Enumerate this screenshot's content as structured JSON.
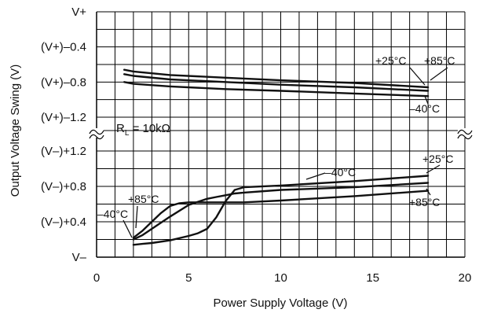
{
  "chart_data": {
    "type": "line",
    "xlabel": "Power Supply Voltage (V)",
    "ylabel": "Output Voltage Swing (V)",
    "xlim": [
      0,
      20
    ],
    "x_ticks": [
      "0",
      "5",
      "10",
      "15",
      "20"
    ],
    "y_ticks": [
      "V+",
      "(V+)–0.4",
      "(V+)–0.8",
      "(V+)–1.2",
      "(V–)+1.2",
      "(V–)+0.8",
      "(V–)+0.4",
      "V–"
    ],
    "annotation": {
      "main": "R",
      "sub": "L",
      "rest": " = 10kΩ"
    },
    "axis_break": true,
    "grid": true,
    "panels": [
      {
        "name": "high-side",
        "y_reference": "V+",
        "ylim": [
          -1.2,
          0.0
        ],
        "series": [
          {
            "label": "+25°C",
            "x": [
              1.5,
              2,
              4,
              7,
              10,
              14,
              18
            ],
            "y": [
              -0.66,
              -0.68,
              -0.72,
              -0.75,
              -0.78,
              -0.81,
              -0.86
            ]
          },
          {
            "label": "+85°C",
            "x": [
              1.5,
              2,
              4,
              7,
              10,
              14,
              18
            ],
            "y": [
              -0.71,
              -0.73,
              -0.77,
              -0.8,
              -0.83,
              -0.86,
              -0.9
            ]
          },
          {
            "label": "–40°C",
            "x": [
              1.5,
              2,
              4,
              7,
              10,
              14,
              18
            ],
            "y": [
              -0.8,
              -0.82,
              -0.85,
              -0.88,
              -0.9,
              -0.93,
              -0.96
            ]
          }
        ]
      },
      {
        "name": "low-side",
        "y_reference": "V–",
        "ylim": [
          0.0,
          1.2
        ],
        "series": [
          {
            "label": "–40°C",
            "x": [
              2,
              2.5,
              3,
              4,
              5,
              5.5,
              6,
              6.5,
              7,
              7.5,
              8,
              10,
              14,
              18
            ],
            "y": [
              0.14,
              0.15,
              0.16,
              0.19,
              0.24,
              0.27,
              0.32,
              0.45,
              0.63,
              0.76,
              0.79,
              0.81,
              0.86,
              0.92
            ]
          },
          {
            "label": "+25°C",
            "x": [
              2,
              2.5,
              3,
              4,
              5,
              6,
              6.5,
              7,
              7.5,
              8,
              10,
              14,
              18
            ],
            "y": [
              0.2,
              0.25,
              0.32,
              0.46,
              0.59,
              0.66,
              0.68,
              0.7,
              0.72,
              0.73,
              0.76,
              0.79,
              0.84
            ]
          },
          {
            "label": "+85°C",
            "x": [
              2,
              2.5,
              3,
              3.5,
              4,
              4.5,
              5,
              6,
              8,
              10,
              14,
              18
            ],
            "y": [
              0.22,
              0.3,
              0.4,
              0.5,
              0.58,
              0.61,
              0.62,
              0.62,
              0.62,
              0.64,
              0.69,
              0.75
            ]
          }
        ]
      }
    ],
    "labels": {
      "top_plus25": "+25°C",
      "top_plus85": "+85°C",
      "top_minus40": "–40°C",
      "bot_minus40_mid": "–40°C",
      "bot_plus25": "+25°C",
      "bot_plus85_right": "+85°C",
      "bot_plus85_left": "+85°C",
      "bot_minus40_left": "–40°C"
    }
  }
}
